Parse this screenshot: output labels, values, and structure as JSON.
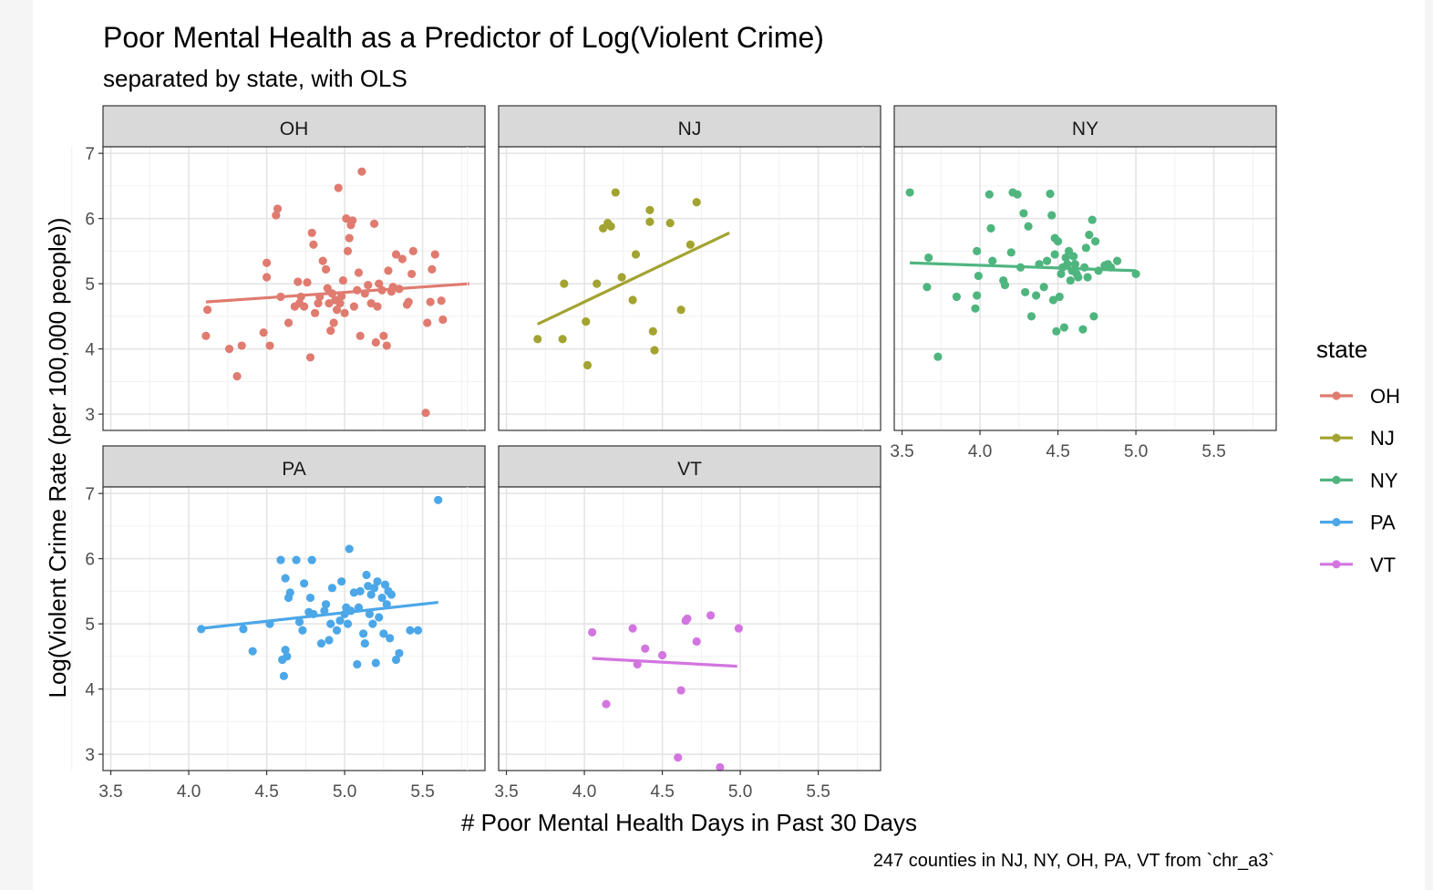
{
  "chart_data": {
    "type": "scatter",
    "title": "Poor Mental Health as a Predictor of Log(Violent Crime)",
    "subtitle": "separated by state, with OLS",
    "xlabel": "# Poor Mental Health Days in Past 30 Days",
    "ylabel": "Log(Violent Crime Rate (per 100,000 people))",
    "caption": "247 counties in NJ, NY, OH, PA, VT from `chr_a3`",
    "xlim": [
      3.45,
      5.9
    ],
    "ylim": [
      2.75,
      7.1
    ],
    "x_ticks": [
      "3.5",
      "4.0",
      "4.5",
      "5.0",
      "5.5"
    ],
    "y_ticks": [
      "3",
      "4",
      "5",
      "6",
      "7"
    ],
    "grid": true,
    "legend": {
      "title": "state",
      "position": "right",
      "entries": [
        "OH",
        "NJ",
        "NY",
        "PA",
        "VT"
      ]
    },
    "facets": [
      {
        "name": "OH",
        "color": "#E07B70",
        "fit": [
          [
            4.11,
            4.72
          ],
          [
            5.8,
            5.0
          ]
        ],
        "points": [
          [
            4.12,
            4.6
          ],
          [
            4.11,
            4.2
          ],
          [
            4.26,
            4.0
          ],
          [
            4.31,
            3.58
          ],
          [
            4.34,
            4.05
          ],
          [
            4.48,
            4.25
          ],
          [
            4.5,
            5.32
          ],
          [
            4.5,
            5.1
          ],
          [
            4.52,
            4.05
          ],
          [
            4.56,
            6.05
          ],
          [
            4.57,
            6.15
          ],
          [
            4.59,
            4.8
          ],
          [
            4.64,
            4.4
          ],
          [
            4.68,
            4.65
          ],
          [
            4.7,
            5.03
          ],
          [
            4.71,
            4.7
          ],
          [
            4.72,
            4.8
          ],
          [
            4.74,
            4.65
          ],
          [
            4.76,
            5.02
          ],
          [
            4.78,
            3.87
          ],
          [
            4.79,
            5.78
          ],
          [
            4.8,
            5.6
          ],
          [
            4.81,
            4.55
          ],
          [
            4.83,
            4.7
          ],
          [
            4.84,
            4.8
          ],
          [
            4.86,
            5.35
          ],
          [
            4.88,
            5.22
          ],
          [
            4.89,
            4.93
          ],
          [
            4.9,
            4.7
          ],
          [
            4.91,
            4.28
          ],
          [
            4.92,
            4.85
          ],
          [
            4.93,
            4.4
          ],
          [
            4.94,
            4.75
          ],
          [
            4.95,
            4.6
          ],
          [
            4.96,
            6.47
          ],
          [
            4.97,
            4.7
          ],
          [
            4.98,
            4.81
          ],
          [
            4.99,
            5.05
          ],
          [
            5.0,
            4.55
          ],
          [
            5.01,
            6.0
          ],
          [
            5.02,
            5.5
          ],
          [
            5.03,
            5.7
          ],
          [
            5.04,
            5.9
          ],
          [
            5.05,
            5.97
          ],
          [
            5.06,
            4.65
          ],
          [
            5.08,
            4.9
          ],
          [
            5.09,
            5.17
          ],
          [
            5.1,
            4.2
          ],
          [
            5.11,
            6.72
          ],
          [
            5.13,
            4.85
          ],
          [
            5.15,
            4.98
          ],
          [
            5.17,
            4.7
          ],
          [
            5.19,
            5.92
          ],
          [
            5.2,
            4.1
          ],
          [
            5.21,
            4.65
          ],
          [
            5.22,
            5.0
          ],
          [
            5.24,
            4.9
          ],
          [
            5.25,
            4.2
          ],
          [
            5.27,
            4.05
          ],
          [
            5.28,
            5.2
          ],
          [
            5.3,
            4.88
          ],
          [
            5.31,
            4.95
          ],
          [
            5.33,
            5.45
          ],
          [
            5.35,
            4.92
          ],
          [
            5.37,
            5.38
          ],
          [
            5.4,
            4.68
          ],
          [
            5.41,
            4.72
          ],
          [
            5.43,
            5.15
          ],
          [
            5.44,
            5.5
          ],
          [
            5.53,
            4.4
          ],
          [
            5.52,
            3.02
          ],
          [
            5.55,
            4.72
          ],
          [
            5.56,
            5.22
          ],
          [
            5.58,
            5.45
          ],
          [
            5.62,
            4.74
          ],
          [
            5.63,
            4.45
          ]
        ]
      },
      {
        "name": "NJ",
        "color": "#A3A331",
        "fit": [
          [
            3.7,
            4.38
          ],
          [
            4.93,
            5.78
          ]
        ],
        "points": [
          [
            3.7,
            4.15
          ],
          [
            3.86,
            4.15
          ],
          [
            3.87,
            5.0
          ],
          [
            4.01,
            4.42
          ],
          [
            4.02,
            3.75
          ],
          [
            4.08,
            5.0
          ],
          [
            4.12,
            5.85
          ],
          [
            4.15,
            5.93
          ],
          [
            4.17,
            5.88
          ],
          [
            4.2,
            6.4
          ],
          [
            4.24,
            5.1
          ],
          [
            4.31,
            4.75
          ],
          [
            4.33,
            5.45
          ],
          [
            4.42,
            5.95
          ],
          [
            4.42,
            6.13
          ],
          [
            4.44,
            4.27
          ],
          [
            4.45,
            3.98
          ],
          [
            4.55,
            5.93
          ],
          [
            4.62,
            4.6
          ],
          [
            4.68,
            5.6
          ],
          [
            4.72,
            6.25
          ]
        ]
      },
      {
        "name": "NY",
        "color": "#4FB57F",
        "fit": [
          [
            3.55,
            5.32
          ],
          [
            5.0,
            5.2
          ]
        ],
        "points": [
          [
            3.55,
            6.4
          ],
          [
            3.66,
            4.95
          ],
          [
            3.67,
            5.4
          ],
          [
            3.73,
            3.88
          ],
          [
            3.85,
            4.8
          ],
          [
            3.97,
            4.62
          ],
          [
            3.98,
            5.5
          ],
          [
            3.98,
            4.82
          ],
          [
            3.99,
            5.12
          ],
          [
            4.06,
            6.37
          ],
          [
            4.07,
            5.85
          ],
          [
            4.08,
            5.35
          ],
          [
            4.15,
            5.05
          ],
          [
            4.16,
            4.98
          ],
          [
            4.2,
            5.48
          ],
          [
            4.21,
            6.4
          ],
          [
            4.24,
            6.37
          ],
          [
            4.26,
            5.25
          ],
          [
            4.28,
            6.08
          ],
          [
            4.29,
            4.87
          ],
          [
            4.31,
            5.88
          ],
          [
            4.33,
            4.5
          ],
          [
            4.36,
            4.82
          ],
          [
            4.38,
            5.3
          ],
          [
            4.41,
            4.95
          ],
          [
            4.43,
            5.35
          ],
          [
            4.45,
            6.38
          ],
          [
            4.46,
            6.05
          ],
          [
            4.47,
            4.75
          ],
          [
            4.48,
            5.45
          ],
          [
            4.48,
            5.7
          ],
          [
            4.49,
            4.27
          ],
          [
            4.5,
            5.65
          ],
          [
            4.51,
            4.8
          ],
          [
            4.52,
            5.15
          ],
          [
            4.53,
            5.25
          ],
          [
            4.54,
            4.33
          ],
          [
            4.55,
            5.4
          ],
          [
            4.56,
            5.3
          ],
          [
            4.57,
            5.5
          ],
          [
            4.58,
            5.05
          ],
          [
            4.59,
            5.2
          ],
          [
            4.6,
            5.42
          ],
          [
            4.61,
            5.3
          ],
          [
            4.62,
            5.15
          ],
          [
            4.63,
            5.1
          ],
          [
            4.66,
            4.3
          ],
          [
            4.67,
            5.25
          ],
          [
            4.68,
            5.55
          ],
          [
            4.69,
            5.1
          ],
          [
            4.7,
            5.75
          ],
          [
            4.72,
            5.98
          ],
          [
            4.73,
            4.5
          ],
          [
            4.74,
            5.65
          ],
          [
            4.76,
            5.2
          ],
          [
            4.8,
            5.28
          ],
          [
            4.82,
            5.3
          ],
          [
            4.84,
            5.25
          ],
          [
            4.88,
            5.35
          ],
          [
            5.0,
            5.15
          ]
        ]
      },
      {
        "name": "PA",
        "color": "#4CA7E8",
        "fit": [
          [
            4.08,
            4.93
          ],
          [
            5.6,
            5.33
          ]
        ],
        "points": [
          [
            4.08,
            4.92
          ],
          [
            4.35,
            4.92
          ],
          [
            4.41,
            4.58
          ],
          [
            4.52,
            5.0
          ],
          [
            4.59,
            5.98
          ],
          [
            4.6,
            4.45
          ],
          [
            4.61,
            4.2
          ],
          [
            4.62,
            4.6
          ],
          [
            4.62,
            5.7
          ],
          [
            4.63,
            4.5
          ],
          [
            4.64,
            5.4
          ],
          [
            4.65,
            5.48
          ],
          [
            4.69,
            5.98
          ],
          [
            4.71,
            5.03
          ],
          [
            4.73,
            4.9
          ],
          [
            4.74,
            5.62
          ],
          [
            4.77,
            5.18
          ],
          [
            4.78,
            5.4
          ],
          [
            4.79,
            5.98
          ],
          [
            4.8,
            5.15
          ],
          [
            4.85,
            4.7
          ],
          [
            4.87,
            5.2
          ],
          [
            4.88,
            5.3
          ],
          [
            4.9,
            4.75
          ],
          [
            4.91,
            5.0
          ],
          [
            4.92,
            5.55
          ],
          [
            4.95,
            4.9
          ],
          [
            4.97,
            5.05
          ],
          [
            4.98,
            5.65
          ],
          [
            5.0,
            5.15
          ],
          [
            5.01,
            5.25
          ],
          [
            5.02,
            5.0
          ],
          [
            5.03,
            6.15
          ],
          [
            5.04,
            5.2
          ],
          [
            5.06,
            5.48
          ],
          [
            5.08,
            4.38
          ],
          [
            5.09,
            5.25
          ],
          [
            5.1,
            5.5
          ],
          [
            5.12,
            4.85
          ],
          [
            5.13,
            4.7
          ],
          [
            5.14,
            5.75
          ],
          [
            5.15,
            5.58
          ],
          [
            5.16,
            5.15
          ],
          [
            5.17,
            5.45
          ],
          [
            5.18,
            5.0
          ],
          [
            5.19,
            5.55
          ],
          [
            5.2,
            4.4
          ],
          [
            5.21,
            5.65
          ],
          [
            5.22,
            5.1
          ],
          [
            5.24,
            5.4
          ],
          [
            5.25,
            4.85
          ],
          [
            5.26,
            5.6
          ],
          [
            5.27,
            5.3
          ],
          [
            5.28,
            5.5
          ],
          [
            5.29,
            4.78
          ],
          [
            5.3,
            5.45
          ],
          [
            5.33,
            4.45
          ],
          [
            5.35,
            4.55
          ],
          [
            5.42,
            4.9
          ],
          [
            5.47,
            4.9
          ],
          [
            5.6,
            6.9
          ]
        ]
      },
      {
        "name": "VT",
        "color": "#D375E0",
        "fit": [
          [
            4.05,
            4.47
          ],
          [
            4.98,
            4.35
          ]
        ],
        "points": [
          [
            4.05,
            4.87
          ],
          [
            4.14,
            3.77
          ],
          [
            4.31,
            4.93
          ],
          [
            4.39,
            4.62
          ],
          [
            4.5,
            4.52
          ],
          [
            4.6,
            2.95
          ],
          [
            4.62,
            3.98
          ],
          [
            4.65,
            5.05
          ],
          [
            4.66,
            5.08
          ],
          [
            4.72,
            4.73
          ],
          [
            4.81,
            5.13
          ],
          [
            4.87,
            2.8
          ],
          [
            4.99,
            4.93
          ],
          [
            4.34,
            4.38
          ]
        ]
      }
    ]
  }
}
